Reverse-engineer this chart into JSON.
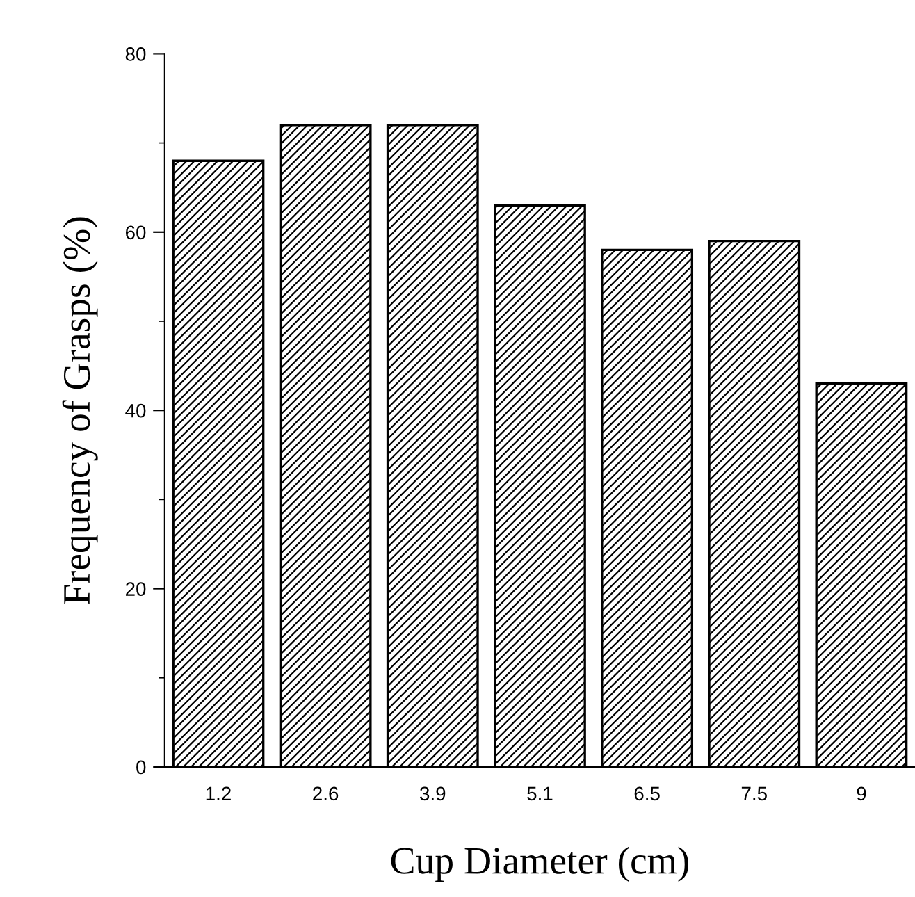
{
  "chart_data": {
    "type": "bar",
    "xlabel": "Cup Diameter (cm)",
    "ylabel": "Frequency of Grasps (%)",
    "categories": [
      "1.2",
      "2.6",
      "3.9",
      "5.1",
      "6.5",
      "7.5",
      "9"
    ],
    "values": [
      68,
      72,
      72,
      63,
      58,
      59,
      43
    ],
    "color": "#000000",
    "ylim": [
      0,
      80
    ],
    "yticks": [
      0,
      20,
      40,
      60,
      80
    ],
    "grid": false,
    "legend": false
  }
}
